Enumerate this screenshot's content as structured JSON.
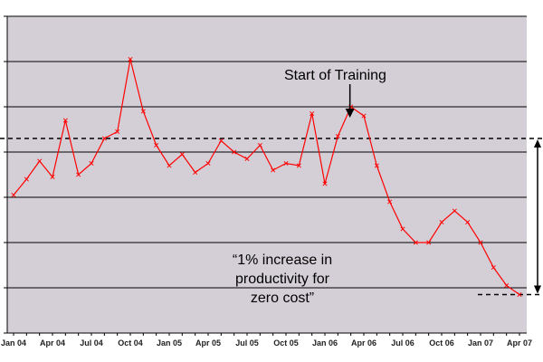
{
  "chart_data": {
    "type": "line",
    "title": "",
    "xlabel": "",
    "ylabel": "",
    "x": [
      "Jan 04",
      "Feb 04",
      "Mar 04",
      "Apr 04",
      "May 04",
      "Jun 04",
      "Jul 04",
      "Aug 04",
      "Sep 04",
      "Oct 04",
      "Nov 04",
      "Dec 04",
      "Jan 05",
      "Feb 05",
      "Mar 05",
      "Apr 05",
      "May 05",
      "Jun 05",
      "Jul 05",
      "Aug 05",
      "Sep 05",
      "Oct 05",
      "Nov 05",
      "Dec 05",
      "Jan 06",
      "Feb 06",
      "Mar 06",
      "Apr 06",
      "May 06",
      "Jun 06",
      "Jul 06",
      "Aug 06",
      "Sep 06",
      "Oct 06",
      "Nov 06",
      "Dec 06",
      "Jan 07",
      "Feb 07",
      "Mar 07",
      "Apr 07"
    ],
    "x_tick_labels": [
      "Jan 04",
      "Apr 04",
      "Jul 04",
      "Oct 04",
      "Jan 05",
      "Apr 05",
      "Jul 05",
      "Oct 05",
      "Jan 06",
      "Apr 06",
      "Jul 06",
      "Oct 06",
      "Jan 07",
      "Apr 07"
    ],
    "ylim": [
      0,
      7
    ],
    "y_gridlines": [
      1,
      2,
      3,
      4,
      5,
      6,
      7
    ],
    "y_tick_labels_visible": false,
    "series": [
      {
        "values": [
          3.05,
          3.4,
          3.8,
          3.45,
          4.7,
          3.5,
          3.75,
          4.3,
          4.45,
          6.05,
          4.9,
          4.15,
          3.7,
          3.95,
          3.55,
          3.75,
          4.25,
          4.0,
          3.85,
          4.15,
          3.6,
          3.75,
          3.7,
          4.85,
          3.3,
          4.35,
          5.0,
          4.8,
          3.7,
          2.9,
          2.3,
          2.0,
          2.0,
          2.45,
          2.7,
          2.45,
          2.0,
          1.45,
          1.05,
          0.85
        ],
        "color": "#ff0000"
      }
    ],
    "reference_lines": [
      {
        "y": 4.3,
        "style": "dashed"
      },
      {
        "y": 0.85,
        "style": "dashed"
      }
    ],
    "annotations": {
      "training_label": "Start of Training",
      "training_index": 26,
      "increase_lines": [
        "“1% increase in",
        "productivity for",
        "zero cost”"
      ]
    },
    "colors": {
      "plot_background": "#d4cfd7",
      "line": "#ff0000",
      "grid": "#000000"
    },
    "grid": true,
    "legend": "none"
  }
}
